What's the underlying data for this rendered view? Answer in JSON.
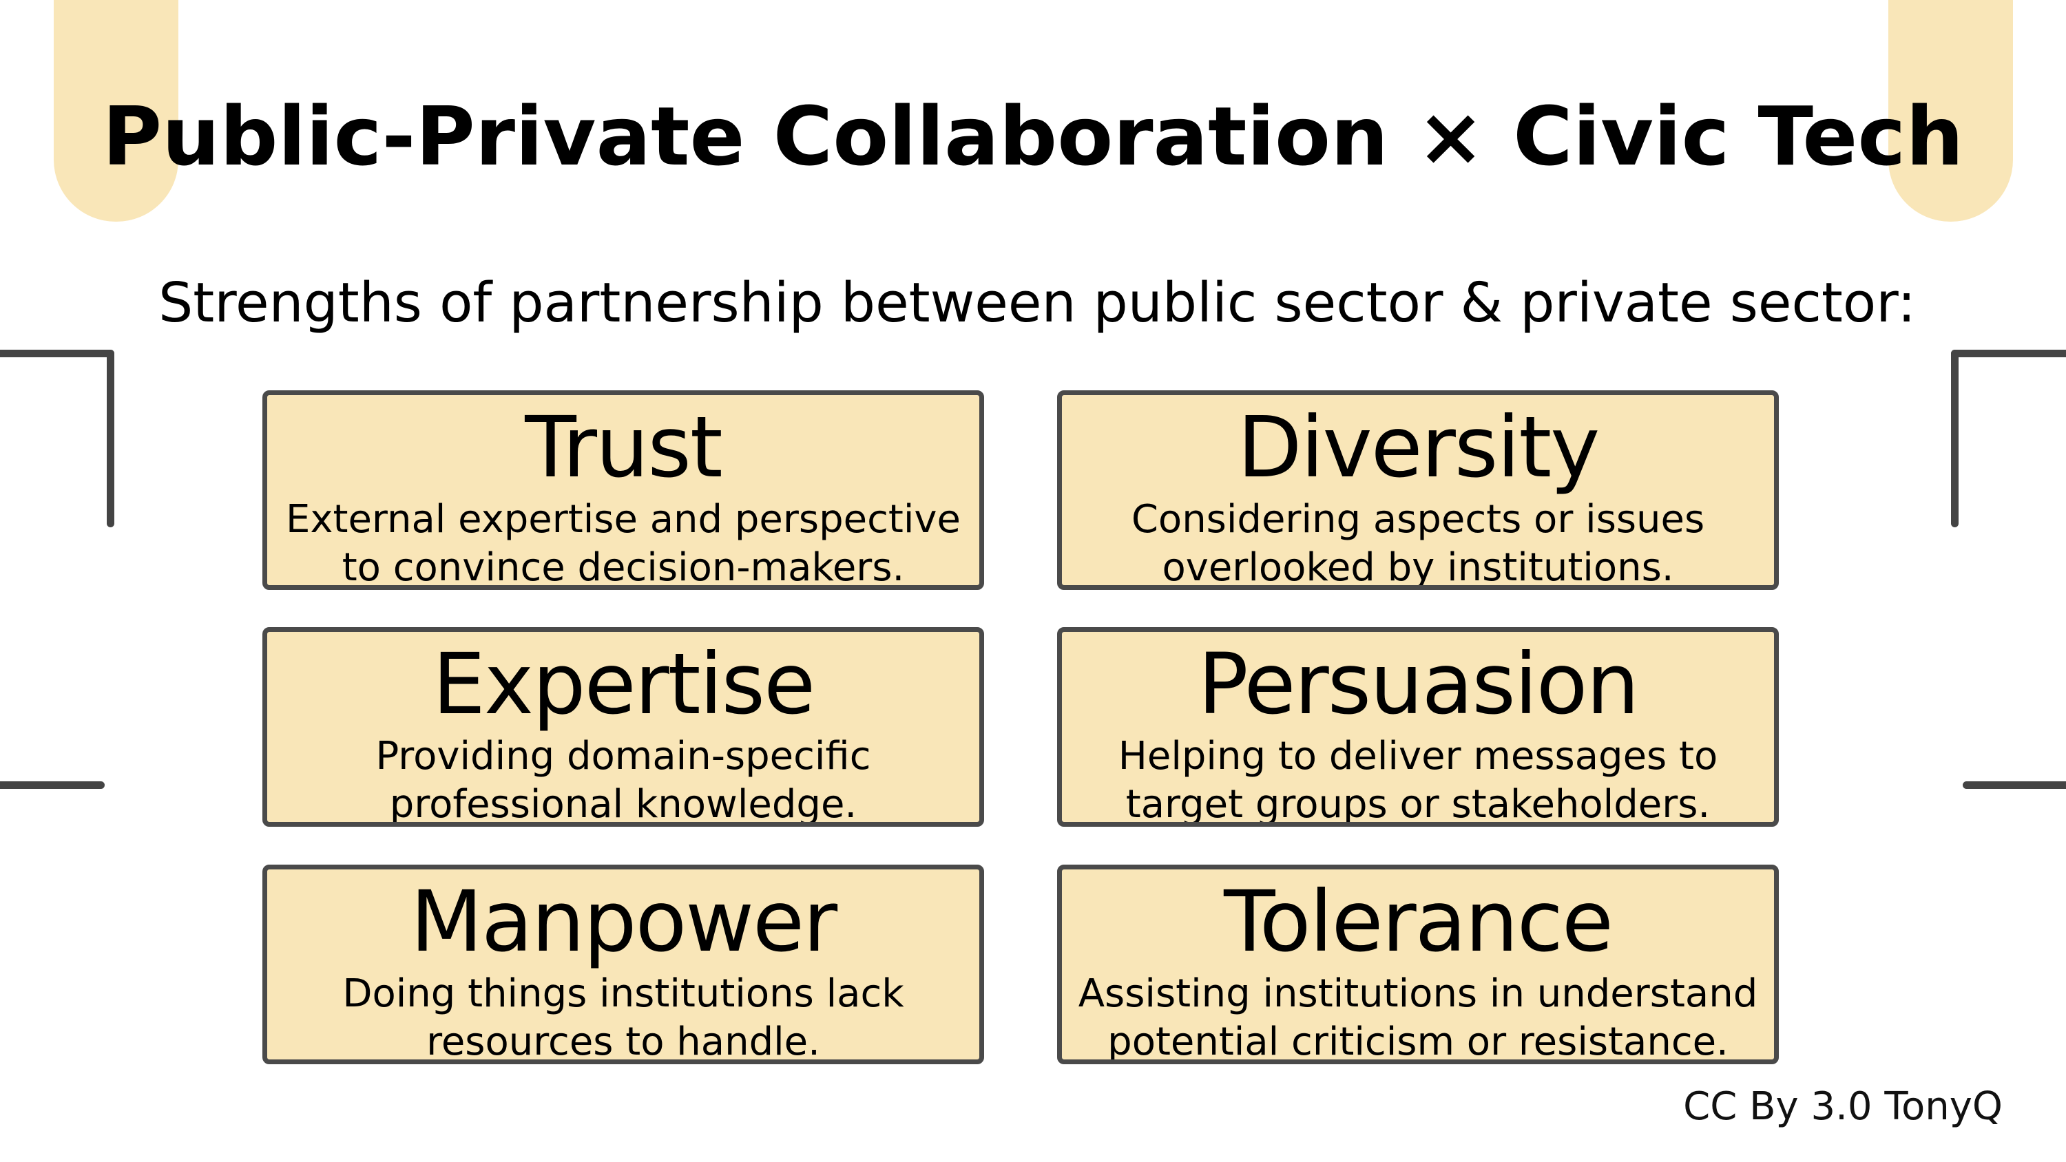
{
  "title": "Public-Private Collaboration × Civic Tech",
  "subtitle": "Strengths of partnership between public sector & private sector:",
  "cards": [
    {
      "title": "Trust",
      "description": "External expertise and perspective\nto convince decision-makers."
    },
    {
      "title": "Diversity",
      "description": "Considering aspects or issues\noverlooked by institutions."
    },
    {
      "title": "Expertise",
      "description": "Providing domain-specific\nprofessional knowledge."
    },
    {
      "title": "Persuasion",
      "description": "Helping to deliver messages to\ntarget groups or stakeholders."
    },
    {
      "title": "Manpower",
      "description": "Doing things institutions lack\nresources to handle."
    },
    {
      "title": "Tolerance",
      "description": "Assisting institutions in understand\npotential criticism or resistance."
    }
  ],
  "credit": "CC By 3.0 TonyQ",
  "colors": {
    "card_fill": "#f9e6b8",
    "card_border": "#4a4a4a",
    "accent_tab": "#f9e6b8",
    "text": "#000000"
  }
}
